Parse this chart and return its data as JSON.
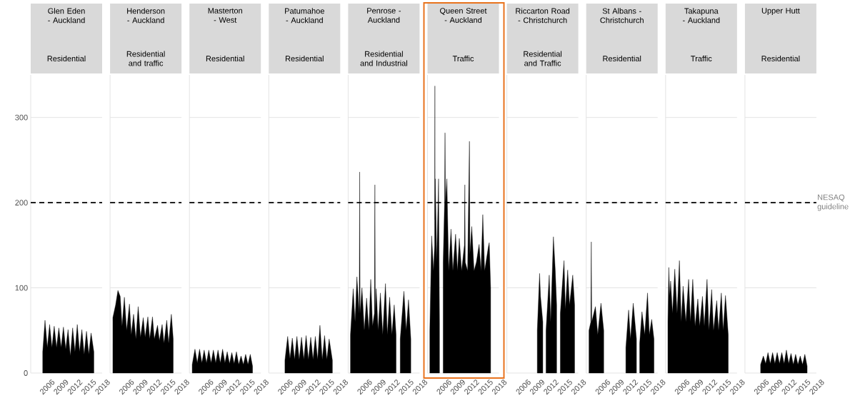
{
  "chart_data": [
    {
      "type": "area",
      "title": "Glen Eden - Auckland",
      "subtitle": "Residential",
      "color": "#000000",
      "xlim": [
        2002.5,
        2018
      ],
      "ylim": [
        0,
        350
      ],
      "xticks": [
        2006,
        2009,
        2012,
        2015,
        2018
      ],
      "yticks": [
        0,
        100,
        200,
        300
      ],
      "grid": "y",
      "ref_lines": [
        {
          "axis": "y",
          "value": 200,
          "line_style": "dashed",
          "color": "#000000"
        }
      ],
      "x": [
        2005.1,
        2005.6,
        2006.1,
        2006.6,
        2007.1,
        2007.6,
        2008.1,
        2008.6,
        2009.1,
        2009.6,
        2010.1,
        2010.6,
        2011.1,
        2011.6,
        2012.1,
        2012.6,
        2013.1,
        2013.6,
        2014.1,
        2014.6,
        2015.1,
        2015.6,
        2016.2
      ],
      "values": [
        25,
        62,
        30,
        57,
        30,
        55,
        30,
        53,
        30,
        54,
        28,
        51,
        20,
        53,
        25,
        57,
        25,
        51,
        22,
        49,
        22,
        47,
        25
      ]
    },
    {
      "type": "area",
      "title": "Henderson - Auckland",
      "subtitle": "Residential and traffic",
      "color": "#000000",
      "xlim": [
        2002.5,
        2018
      ],
      "ylim": [
        0,
        350
      ],
      "xticks": [
        2006,
        2009,
        2012,
        2015,
        2018
      ],
      "yticks": [
        0,
        100,
        200,
        300
      ],
      "grid": "y",
      "tick_labels": "x",
      "ref_lines": [
        {
          "axis": "y",
          "value": 200,
          "line_style": "dashed",
          "color": "#000000"
        }
      ],
      "x": [
        2003.1,
        2003.7,
        2004.2,
        2004.7,
        2005.1,
        2005.6,
        2006.1,
        2006.7,
        2007.1,
        2007.6,
        2008.1,
        2008.6,
        2009.1,
        2009.7,
        2010.1,
        2010.7,
        2011.1,
        2011.7,
        2012.1,
        2012.8,
        2013.2,
        2013.8,
        2014.2,
        2014.8,
        2015.2,
        2015.8,
        2016.2
      ],
      "values": [
        65,
        80,
        97,
        90,
        55,
        89,
        50,
        81,
        45,
        69,
        40,
        78,
        42,
        65,
        42,
        66,
        40,
        66,
        40,
        56,
        38,
        57,
        35,
        62,
        35,
        69,
        40
      ]
    },
    {
      "type": "area",
      "title": "Masterton - West",
      "subtitle": "Residential",
      "color": "#000000",
      "xlim": [
        2002.5,
        2018
      ],
      "ylim": [
        0,
        350
      ],
      "xticks": [
        2006,
        2009,
        2012,
        2015,
        2018
      ],
      "yticks": [
        0,
        100,
        200,
        300
      ],
      "grid": "y",
      "tick_labels": "x",
      "ref_lines": [
        {
          "axis": "y",
          "value": 200,
          "line_style": "dashed",
          "color": "#000000"
        }
      ],
      "x": [
        2003.1,
        2003.7,
        2004.2,
        2004.7,
        2005.2,
        2005.7,
        2006.2,
        2006.7,
        2007.2,
        2007.7,
        2008.2,
        2008.7,
        2009.2,
        2009.7,
        2010.2,
        2010.7,
        2011.2,
        2011.7,
        2012.2,
        2012.7,
        2013.2,
        2013.7,
        2014.2,
        2014.7,
        2015.2,
        2015.7,
        2016.2
      ],
      "values": [
        10,
        28,
        12,
        28,
        12,
        27,
        12,
        27,
        12,
        27,
        12,
        27,
        12,
        28,
        12,
        25,
        11,
        24,
        11,
        25,
        10,
        20,
        10,
        22,
        10,
        22,
        8
      ]
    },
    {
      "type": "area",
      "title": "Patumahoe - Auckland",
      "subtitle": "Residential",
      "color": "#000000",
      "xlim": [
        2002.5,
        2018
      ],
      "ylim": [
        0,
        350
      ],
      "xticks": [
        2006,
        2009,
        2012,
        2015,
        2018
      ],
      "yticks": [
        0,
        100,
        200,
        300
      ],
      "grid": "y",
      "tick_labels": "x",
      "ref_lines": [
        {
          "axis": "y",
          "value": 200,
          "line_style": "dashed",
          "color": "#000000"
        }
      ],
      "x": [
        2006.0,
        2006.6,
        2007.1,
        2007.6,
        2008.1,
        2008.6,
        2009.1,
        2009.6,
        2010.1,
        2010.6,
        2011.1,
        2011.6,
        2012.1,
        2012.6,
        2013.1,
        2013.6,
        2014.1,
        2014.6,
        2015.1,
        2015.6,
        2016.3
      ],
      "values": [
        15,
        43,
        17,
        41,
        16,
        43,
        16,
        42,
        16,
        44,
        16,
        42,
        16,
        43,
        16,
        56,
        16,
        44,
        16,
        40,
        15
      ]
    },
    {
      "type": "area",
      "title": "Penrose - Auckland",
      "subtitle": "Residential and Industrial",
      "color": "#000000",
      "xlim": [
        2002.5,
        2018
      ],
      "ylim": [
        0,
        350
      ],
      "xticks": [
        2006,
        2009,
        2012,
        2015,
        2018
      ],
      "yticks": [
        0,
        100,
        200,
        300
      ],
      "grid": "y",
      "tick_labels": "x",
      "ref_lines": [
        {
          "axis": "y",
          "value": 200,
          "line_style": "dashed",
          "color": "#000000"
        }
      ],
      "x": [
        2003.0,
        2003.6,
        2004.0,
        2004.4,
        2004.9,
        2005.0,
        2005.1,
        2005.5,
        2006.0,
        2006.5,
        2007.0,
        2007.4,
        2007.8,
        2008.2,
        2008.3,
        2008.4,
        2008.6,
        2009.0,
        2009.5,
        2010.0,
        2010.6,
        2011.0,
        2011.5,
        2012.0,
        2012.5,
        2012.9,
        2013.3,
        2013.8,
        2014.6,
        2015.1,
        2015.6,
        2016.1
      ],
      "values": [
        45,
        99,
        60,
        113,
        70,
        236,
        70,
        100,
        50,
        88,
        50,
        110,
        55,
        70,
        221,
        70,
        99,
        50,
        94,
        45,
        105,
        45,
        89,
        45,
        80,
        45,
        null,
        40,
        96,
        50,
        86,
        40
      ]
    },
    {
      "type": "area",
      "title": "Queen Street - Auckland",
      "subtitle": "Traffic",
      "color": "#000000",
      "xlim": [
        2002.5,
        2018
      ],
      "ylim": [
        0,
        350
      ],
      "xticks": [
        2006,
        2009,
        2012,
        2015,
        2018
      ],
      "yticks": [
        0,
        100,
        200,
        300
      ],
      "grid": "y",
      "tick_labels": "x",
      "ref_lines": [
        {
          "axis": "y",
          "value": 200,
          "line_style": "dashed",
          "color": "#000000"
        }
      ],
      "x": [
        2003.0,
        2003.4,
        2003.8,
        2004.05,
        2004.1,
        2004.15,
        2004.2,
        2004.5,
        2004.9,
        2005.1,
        2005.5,
        2005.9,
        2006.2,
        2006.3,
        2006.4,
        2006.7,
        2007.1,
        2007.6,
        2008.0,
        2008.6,
        2009.0,
        2009.4,
        2009.9,
        2010.5,
        2010.6,
        2010.7,
        2011.2,
        2011.6,
        2011.7,
        2012.1,
        2012.6,
        2013.1,
        2013.7,
        2014.1,
        2014.5,
        2014.9,
        2015.7,
        2015.9,
        2016.2
      ],
      "values": [
        50,
        161,
        120,
        150,
        337,
        180,
        228,
        130,
        228,
        60,
        null,
        130,
        200,
        282,
        200,
        228,
        120,
        169,
        120,
        163,
        120,
        158,
        120,
        150,
        221,
        130,
        120,
        272,
        140,
        172,
        120,
        130,
        151,
        120,
        186,
        120,
        148,
        153,
        100
      ]
    },
    {
      "type": "area",
      "title": "Riccarton Road - Christchurch",
      "subtitle": "Residential and Traffic",
      "color": "#000000",
      "xlim": [
        2002.5,
        2018
      ],
      "ylim": [
        0,
        350
      ],
      "xticks": [
        2006,
        2009,
        2012,
        2015,
        2018
      ],
      "yticks": [
        0,
        100,
        200,
        300
      ],
      "grid": "y",
      "tick_labels": "x",
      "ref_lines": [
        {
          "axis": "y",
          "value": 200,
          "line_style": "dashed",
          "color": "#000000"
        }
      ],
      "x": [
        2009.1,
        2009.6,
        2009.8,
        2010.3,
        2010.6,
        2011.0,
        2011.7,
        2012.0,
        2012.6,
        2013.0,
        2013.3,
        2013.7,
        2014.1,
        2014.9,
        2015.2,
        2015.7,
        2016.1,
        2016.8,
        2017.2
      ],
      "values": [
        50,
        117,
        90,
        60,
        null,
        50,
        115,
        60,
        160,
        121,
        80,
        null,
        70,
        132,
        75,
        121,
        80,
        115,
        80
      ]
    },
    {
      "type": "area",
      "title": "St Albans - Christchurch",
      "subtitle": "Residential",
      "color": "#000000",
      "xlim": [
        2002.5,
        2018
      ],
      "ylim": [
        0,
        350
      ],
      "xticks": [
        2006,
        2009,
        2012,
        2015,
        2018
      ],
      "yticks": [
        0,
        100,
        200,
        300
      ],
      "grid": "y",
      "tick_labels": "x",
      "ref_lines": [
        {
          "axis": "y",
          "value": 200,
          "line_style": "dashed",
          "color": "#000000"
        }
      ],
      "x": [
        2003.1,
        2003.5,
        2003.6,
        2003.7,
        2004.5,
        2005.0,
        2005.7,
        2006.3,
        2008.7,
        2011.1,
        2011.7,
        2012.1,
        2012.7,
        2013.4,
        2013.7,
        2014.1,
        2014.6,
        2015.2,
        2015.8,
        2016.2,
        2016.7,
        2017.2
      ],
      "values": [
        50,
        60,
        154,
        60,
        78,
        45,
        82,
        50,
        null,
        30,
        74,
        40,
        82,
        40,
        null,
        35,
        72,
        45,
        94,
        45,
        63,
        40
      ]
    },
    {
      "type": "area",
      "title": "Takapuna - Auckland",
      "subtitle": "Traffic",
      "color": "#000000",
      "xlim": [
        2002.5,
        2018
      ],
      "ylim": [
        0,
        350
      ],
      "xticks": [
        2006,
        2009,
        2012,
        2015,
        2018
      ],
      "yticks": [
        0,
        100,
        200,
        300
      ],
      "grid": "y",
      "tick_labels": "x",
      "ref_lines": [
        {
          "axis": "y",
          "value": 200,
          "line_style": "dashed",
          "color": "#000000"
        }
      ],
      "x": [
        2003.0,
        2003.2,
        2003.4,
        2003.6,
        2004.0,
        2004.5,
        2005.0,
        2005.5,
        2005.9,
        2006.3,
        2006.9,
        2007.5,
        2007.9,
        2008.4,
        2008.9,
        2009.5,
        2009.9,
        2010.5,
        2010.9,
        2011.5,
        2011.9,
        2012.5,
        2012.9,
        2013.6,
        2014.0,
        2014.6,
        2015.0,
        2015.5,
        2016.1
      ],
      "values": [
        60,
        124,
        90,
        108,
        70,
        122,
        70,
        132,
        60,
        102,
        60,
        110,
        60,
        110,
        55,
        87,
        55,
        90,
        55,
        110,
        50,
        98,
        50,
        85,
        50,
        94,
        50,
        91,
        45
      ]
    },
    {
      "type": "area",
      "title": "Upper Hutt",
      "subtitle": "Residential",
      "color": "#000000",
      "xlim": [
        2002.5,
        2018
      ],
      "ylim": [
        0,
        350
      ],
      "xticks": [
        2006,
        2009,
        2012,
        2015,
        2018
      ],
      "yticks": [
        0,
        100,
        200,
        300
      ],
      "grid": "y",
      "tick_labels": "x",
      "ref_lines": [
        {
          "axis": "y",
          "value": 200,
          "line_style": "dashed",
          "color": "#000000",
          "label": "NESAQ guideline"
        }
      ],
      "x": [
        2005.9,
        2006.5,
        2007.0,
        2007.5,
        2008.0,
        2008.5,
        2009.0,
        2009.5,
        2010.0,
        2010.5,
        2011.0,
        2011.5,
        2012.0,
        2012.5,
        2013.0,
        2013.5,
        2014.0,
        2014.5,
        2015.0,
        2015.5,
        2016.0
      ],
      "values": [
        10,
        20,
        11,
        24,
        11,
        24,
        11,
        24,
        11,
        24,
        11,
        27,
        11,
        23,
        10,
        22,
        10,
        20,
        10,
        22,
        8
      ]
    }
  ]
}
